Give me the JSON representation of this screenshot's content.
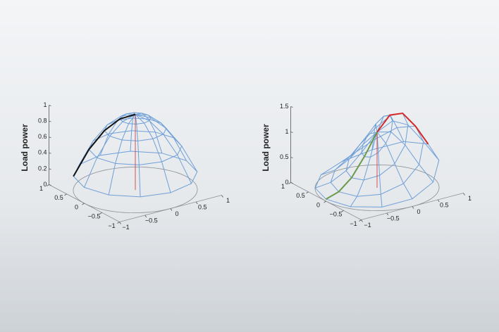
{
  "chart_data": [
    {
      "type": "surface",
      "zlabel": "Load power",
      "color": "#6f9fd8",
      "r": [
        0,
        0.25,
        0.5,
        0.75,
        1
      ],
      "theta": [
        0,
        30,
        60,
        90,
        120,
        150,
        180,
        210,
        240,
        270,
        300,
        330
      ],
      "z": [
        [
          0.95,
          0.95,
          0.95,
          0.95,
          0.95,
          0.95,
          0.95,
          0.95,
          0.95,
          0.95,
          0.95,
          0.95
        ],
        [
          0.9,
          0.9,
          0.9,
          0.9,
          0.9,
          0.9,
          0.9,
          0.9,
          0.9,
          0.9,
          0.9,
          0.9
        ],
        [
          0.76,
          0.76,
          0.76,
          0.76,
          0.76,
          0.76,
          0.76,
          0.76,
          0.76,
          0.76,
          0.76,
          0.76
        ],
        [
          0.53,
          0.53,
          0.53,
          0.53,
          0.53,
          0.53,
          0.53,
          0.53,
          0.53,
          0.53,
          0.53,
          0.53
        ],
        [
          0.2,
          0.2,
          0.2,
          0.2,
          0.2,
          0.2,
          0.2,
          0.2,
          0.2,
          0.2,
          0.2,
          0.2
        ]
      ],
      "xlim": [
        -1,
        1
      ],
      "xticks": [
        {
          "value": -1,
          "label": "−1"
        },
        {
          "value": -0.5,
          "label": "−0.5"
        },
        0,
        0.5,
        1
      ],
      "ylim": [
        -1,
        1
      ],
      "yticks": [
        {
          "value": -1,
          "label": "−1"
        },
        {
          "value": -0.5,
          "label": "−0.5"
        },
        0,
        0.5,
        1
      ],
      "zlim": [
        0,
        1
      ],
      "zticks": [
        0,
        0.2,
        0.4,
        0.6,
        0.8,
        1
      ]
    },
    {
      "type": "surface",
      "zlabel": "Load power",
      "color": "#6f9fd8",
      "r": [
        0,
        0.25,
        0.5,
        0.75,
        1
      ],
      "theta": [
        0,
        30,
        60,
        90,
        120,
        150,
        180,
        210,
        240,
        270,
        300,
        330
      ],
      "z": [
        [
          1.1,
          1.1,
          1.1,
          1.1,
          1.1,
          1.1,
          1.1,
          1.1,
          1.1,
          1.1,
          1.1,
          1.1
        ],
        [
          1.37,
          1.31,
          1.15,
          0.97,
          0.81,
          0.71,
          0.68,
          0.71,
          0.81,
          0.97,
          1.15,
          1.31
        ],
        [
          1.34,
          1.22,
          0.94,
          0.66,
          0.47,
          0.36,
          0.33,
          0.36,
          0.47,
          0.66,
          0.94,
          1.22
        ],
        [
          1.02,
          0.88,
          0.6,
          0.36,
          0.21,
          0.14,
          0.12,
          0.14,
          0.21,
          0.36,
          0.6,
          0.88
        ],
        [
          0.6,
          0.5,
          0.3,
          0.15,
          0.07,
          0.04,
          0.04,
          0.04,
          0.07,
          0.15,
          0.3,
          0.5
        ]
      ],
      "xlim": [
        -1,
        1
      ],
      "xticks": [
        {
          "value": -1,
          "label": "−1"
        },
        {
          "value": -0.5,
          "label": "−0.5"
        },
        0,
        0.5,
        1
      ],
      "ylim": [
        -1,
        1
      ],
      "yticks": [
        {
          "value": -1,
          "label": "−1"
        },
        {
          "value": -0.5,
          "label": "−0.5"
        },
        0,
        0.5,
        1
      ],
      "zlim": [
        0,
        1.5
      ],
      "zticks": [
        0,
        0.5,
        1,
        1.5
      ]
    }
  ]
}
